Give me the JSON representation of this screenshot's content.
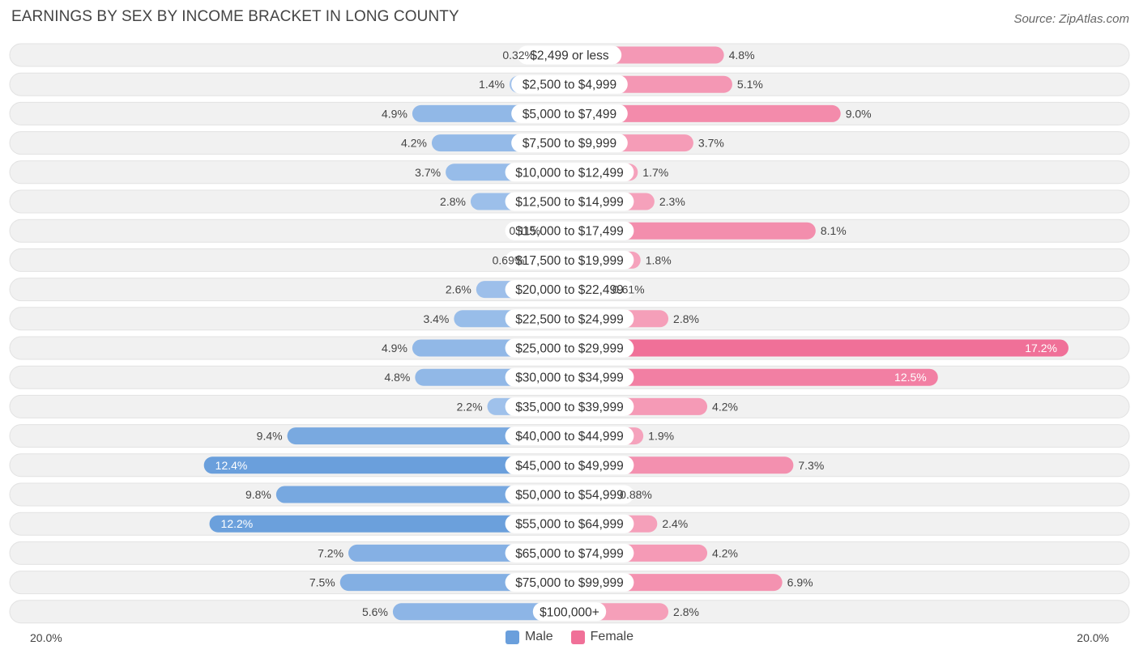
{
  "title": "EARNINGS BY SEX BY INCOME BRACKET IN LONG COUNTY",
  "source": "Source: ZipAtlas.com",
  "colors": {
    "male": "#6a9fdc",
    "male_light": "#aac8ee",
    "female": "#f07098",
    "female_light": "#f6a8c0",
    "row_bg": "#f1f1f1"
  },
  "chart_data": {
    "type": "bar",
    "orientation": "horizontal-diverging",
    "title": "EARNINGS BY SEX BY INCOME BRACKET IN LONG COUNTY",
    "axis_min_label": "20.0%",
    "axis_max_label": "20.0%",
    "xlim": [
      -20,
      20
    ],
    "categories": [
      "$2,499 or less",
      "$2,500 to $4,999",
      "$5,000 to $7,499",
      "$7,500 to $9,999",
      "$10,000 to $12,499",
      "$12,500 to $14,999",
      "$15,000 to $17,499",
      "$17,500 to $19,999",
      "$20,000 to $22,499",
      "$22,500 to $24,999",
      "$25,000 to $29,999",
      "$30,000 to $34,999",
      "$35,000 to $39,999",
      "$40,000 to $44,999",
      "$45,000 to $49,999",
      "$50,000 to $54,999",
      "$55,000 to $64,999",
      "$65,000 to $74,999",
      "$75,000 to $99,999",
      "$100,000+"
    ],
    "series": [
      {
        "name": "Male",
        "values": [
          0.32,
          1.4,
          4.9,
          4.2,
          3.7,
          2.8,
          0.11,
          0.69,
          2.6,
          3.4,
          4.9,
          4.8,
          2.2,
          9.4,
          12.4,
          9.8,
          12.2,
          7.2,
          7.5,
          5.6
        ],
        "labels": [
          "0.32%",
          "1.4%",
          "4.9%",
          "4.2%",
          "3.7%",
          "2.8%",
          "0.11%",
          "0.69%",
          "2.6%",
          "3.4%",
          "4.9%",
          "4.8%",
          "2.2%",
          "9.4%",
          "12.4%",
          "9.8%",
          "12.2%",
          "7.2%",
          "7.5%",
          "5.6%"
        ]
      },
      {
        "name": "Female",
        "values": [
          4.8,
          5.1,
          9.0,
          3.7,
          1.7,
          2.3,
          8.1,
          1.8,
          0.61,
          2.8,
          17.2,
          12.5,
          4.2,
          1.9,
          7.3,
          0.88,
          2.4,
          4.2,
          6.9,
          2.8
        ],
        "labels": [
          "4.8%",
          "5.1%",
          "9.0%",
          "3.7%",
          "1.7%",
          "2.3%",
          "8.1%",
          "1.8%",
          "0.61%",
          "2.8%",
          "17.2%",
          "12.5%",
          "4.2%",
          "1.9%",
          "7.3%",
          "0.88%",
          "2.4%",
          "4.2%",
          "6.9%",
          "2.8%"
        ]
      }
    ],
    "legend": [
      "Male",
      "Female"
    ],
    "legend_position": "bottom-center"
  }
}
